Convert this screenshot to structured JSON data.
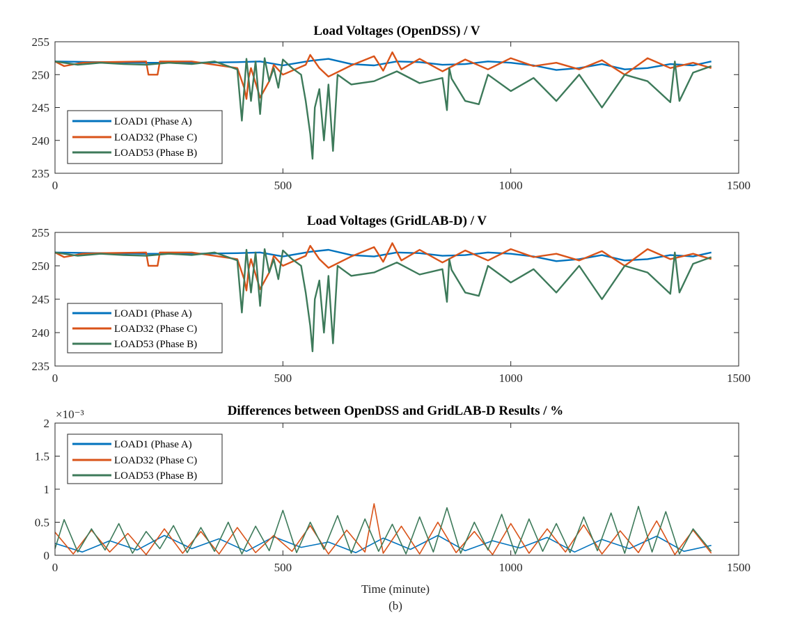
{
  "colors": {
    "load1": "#0072BD",
    "load32": "#D95319",
    "load53": "#3D7A5A"
  },
  "chart_data": [
    {
      "type": "line",
      "title": "Load Voltages (OpenDSS) / V",
      "xlabel": "",
      "ylabel": "",
      "xlim": [
        0,
        1500
      ],
      "ylim": [
        235,
        255
      ],
      "xticks": [
        0,
        500,
        1000,
        1500
      ],
      "yticks": [
        235,
        240,
        245,
        250,
        255
      ],
      "grid": false,
      "legend_position": "lower-left",
      "series": [
        {
          "name": "LOAD1 (Phase A)",
          "color_key": "load1",
          "x": [
            0,
            100,
            200,
            300,
            400,
            450,
            500,
            560,
            600,
            650,
            700,
            750,
            800,
            850,
            900,
            950,
            1000,
            1050,
            1100,
            1150,
            1200,
            1250,
            1300,
            1350,
            1400,
            1440
          ],
          "y": [
            252,
            251.9,
            251.8,
            251.8,
            251.9,
            252,
            251.4,
            252.1,
            252.4,
            251.6,
            251.4,
            252,
            251.9,
            251.5,
            251.6,
            252,
            251.8,
            251.4,
            250.7,
            251,
            251.6,
            250.8,
            251,
            251.6,
            251.4,
            252
          ]
        },
        {
          "name": "LOAD32 (Phase C)",
          "color_key": "load32",
          "x": [
            0,
            20,
            60,
            100,
            200,
            205,
            225,
            230,
            300,
            400,
            415,
            420,
            425,
            430,
            450,
            470,
            480,
            500,
            550,
            560,
            580,
            600,
            650,
            700,
            720,
            740,
            760,
            800,
            850,
            900,
            950,
            1000,
            1050,
            1100,
            1150,
            1200,
            1250,
            1300,
            1350,
            1400,
            1440
          ],
          "y": [
            252,
            251.3,
            251.8,
            251.9,
            252,
            250,
            250,
            252,
            252,
            251,
            248,
            246.3,
            249.5,
            251,
            246.5,
            249,
            251.5,
            250,
            251.5,
            253,
            251,
            249.7,
            251.4,
            252.8,
            250.6,
            253.4,
            250.8,
            252.4,
            250.5,
            252.3,
            250.8,
            252.5,
            251.3,
            251.8,
            250.8,
            252.2,
            250,
            252.5,
            251,
            251.8,
            251
          ]
        },
        {
          "name": "LOAD53 (Phase B)",
          "color_key": "load53",
          "x": [
            0,
            50,
            100,
            150,
            200,
            250,
            300,
            350,
            400,
            410,
            420,
            430,
            440,
            450,
            460,
            470,
            480,
            490,
            500,
            520,
            540,
            550,
            560,
            565,
            570,
            580,
            590,
            600,
            610,
            620,
            630,
            650,
            700,
            750,
            800,
            850,
            860,
            865,
            870,
            900,
            930,
            950,
            1000,
            1050,
            1100,
            1150,
            1200,
            1250,
            1300,
            1350,
            1360,
            1370,
            1400,
            1440
          ],
          "y": [
            252,
            251.5,
            251.8,
            251.6,
            251.5,
            251.8,
            251.6,
            252,
            250.8,
            243,
            252.4,
            246,
            252,
            244,
            252.5,
            249,
            251,
            248,
            252.3,
            251,
            250,
            246,
            241,
            237.2,
            245,
            247.8,
            240,
            248.5,
            238.4,
            250,
            249.5,
            248.5,
            249,
            250.5,
            248.7,
            249.5,
            244.6,
            251,
            249.4,
            246,
            245.5,
            250,
            247.5,
            249.5,
            246,
            250,
            245,
            250,
            249,
            245.8,
            252,
            246,
            250.3,
            251.3
          ]
        }
      ]
    },
    {
      "type": "line",
      "title": "Load Voltages (GridLAB-D) / V",
      "xlabel": "",
      "ylabel": "",
      "xlim": [
        0,
        1500
      ],
      "ylim": [
        235,
        255
      ],
      "xticks": [
        0,
        500,
        1000,
        1500
      ],
      "yticks": [
        235,
        240,
        245,
        250,
        255
      ],
      "grid": false,
      "legend_position": "lower-left",
      "series": [
        {
          "name": "LOAD1 (Phase A)",
          "color_key": "load1",
          "x": [
            0,
            100,
            200,
            300,
            400,
            450,
            500,
            560,
            600,
            650,
            700,
            750,
            800,
            850,
            900,
            950,
            1000,
            1050,
            1100,
            1150,
            1200,
            1250,
            1300,
            1350,
            1400,
            1440
          ],
          "y": [
            252,
            251.9,
            251.8,
            251.8,
            251.9,
            252,
            251.4,
            252.1,
            252.4,
            251.6,
            251.4,
            252,
            251.9,
            251.5,
            251.6,
            252,
            251.8,
            251.4,
            250.7,
            251,
            251.6,
            250.8,
            251,
            251.6,
            251.4,
            252
          ]
        },
        {
          "name": "LOAD32 (Phase C)",
          "color_key": "load32",
          "x": [
            0,
            20,
            60,
            100,
            200,
            205,
            225,
            230,
            300,
            400,
            415,
            420,
            425,
            430,
            450,
            470,
            480,
            500,
            550,
            560,
            580,
            600,
            650,
            700,
            720,
            740,
            760,
            800,
            850,
            900,
            950,
            1000,
            1050,
            1100,
            1150,
            1200,
            1250,
            1300,
            1350,
            1400,
            1440
          ],
          "y": [
            252,
            251.3,
            251.8,
            251.9,
            252,
            250,
            250,
            252,
            252,
            251,
            248,
            246.3,
            249.5,
            251,
            246.5,
            249,
            251.5,
            250,
            251.5,
            253,
            251,
            249.7,
            251.4,
            252.8,
            250.6,
            253.4,
            250.8,
            252.4,
            250.5,
            252.3,
            250.8,
            252.5,
            251.3,
            251.8,
            250.8,
            252.2,
            250,
            252.5,
            251,
            251.8,
            251
          ]
        },
        {
          "name": "LOAD53 (Phase B)",
          "color_key": "load53",
          "x": [
            0,
            50,
            100,
            150,
            200,
            250,
            300,
            350,
            400,
            410,
            420,
            430,
            440,
            450,
            460,
            470,
            480,
            490,
            500,
            520,
            540,
            550,
            560,
            565,
            570,
            580,
            590,
            600,
            610,
            620,
            630,
            650,
            700,
            750,
            800,
            850,
            860,
            865,
            870,
            900,
            930,
            950,
            1000,
            1050,
            1100,
            1150,
            1200,
            1250,
            1300,
            1350,
            1360,
            1370,
            1400,
            1440
          ],
          "y": [
            252,
            251.5,
            251.8,
            251.6,
            251.5,
            251.8,
            251.6,
            252,
            250.8,
            243,
            252.4,
            246,
            252,
            244,
            252.5,
            249,
            251,
            248,
            252.3,
            251,
            250,
            246,
            241,
            237.2,
            245,
            247.8,
            240,
            248.5,
            238.4,
            250,
            249.5,
            248.5,
            249,
            250.5,
            248.7,
            249.5,
            244.6,
            251,
            249.4,
            246,
            245.5,
            250,
            247.5,
            249.5,
            246,
            250,
            245,
            250,
            249,
            245.8,
            252,
            246,
            250.3,
            251.3
          ]
        }
      ]
    },
    {
      "type": "line",
      "title": "Differences between OpenDSS and GridLAB-D Results / %",
      "xlabel": "Time (minute)",
      "ylabel": "",
      "y_exponent_label": "×10⁻³",
      "xlim": [
        0,
        1500
      ],
      "ylim": [
        0,
        2
      ],
      "xticks": [
        0,
        500,
        1000,
        1500
      ],
      "yticks": [
        0,
        0.5,
        1,
        1.5,
        2
      ],
      "ytick_labels": [
        "0",
        "0.5",
        "1",
        "1.5",
        "2"
      ],
      "grid": false,
      "legend_position": "top-left",
      "series": [
        {
          "name": "LOAD1 (Phase A)",
          "color_key": "load1",
          "x": [
            0,
            60,
            120,
            180,
            240,
            300,
            360,
            420,
            480,
            540,
            600,
            660,
            720,
            780,
            840,
            900,
            960,
            1020,
            1080,
            1140,
            1200,
            1260,
            1320,
            1380,
            1440
          ],
          "y": [
            0.18,
            0.05,
            0.22,
            0.08,
            0.3,
            0.1,
            0.25,
            0.06,
            0.28,
            0.12,
            0.2,
            0.04,
            0.26,
            0.09,
            0.3,
            0.07,
            0.22,
            0.11,
            0.27,
            0.05,
            0.24,
            0.1,
            0.29,
            0.06,
            0.15
          ]
        },
        {
          "name": "LOAD32 (Phase C)",
          "color_key": "load32",
          "x": [
            0,
            40,
            80,
            120,
            160,
            200,
            240,
            280,
            320,
            360,
            400,
            440,
            480,
            520,
            560,
            600,
            640,
            680,
            700,
            720,
            760,
            800,
            840,
            880,
            920,
            960,
            1000,
            1040,
            1080,
            1120,
            1160,
            1200,
            1240,
            1280,
            1320,
            1360,
            1400,
            1440
          ],
          "y": [
            0.35,
            0.02,
            0.38,
            0.05,
            0.33,
            0.01,
            0.4,
            0.03,
            0.36,
            0.02,
            0.42,
            0.04,
            0.3,
            0.06,
            0.45,
            0.02,
            0.38,
            0.05,
            0.78,
            0.03,
            0.44,
            0.02,
            0.5,
            0.04,
            0.36,
            0.01,
            0.48,
            0.03,
            0.4,
            0.05,
            0.46,
            0.02,
            0.37,
            0.04,
            0.52,
            0.01,
            0.38,
            0.03
          ]
        },
        {
          "name": "LOAD53 (Phase B)",
          "color_key": "load53",
          "x": [
            0,
            20,
            50,
            80,
            110,
            140,
            170,
            200,
            230,
            260,
            290,
            320,
            350,
            380,
            410,
            440,
            470,
            500,
            530,
            560,
            590,
            620,
            650,
            680,
            710,
            740,
            770,
            800,
            830,
            860,
            890,
            920,
            950,
            980,
            1010,
            1040,
            1070,
            1100,
            1130,
            1160,
            1190,
            1220,
            1250,
            1280,
            1310,
            1340,
            1370,
            1400,
            1440
          ],
          "y": [
            0.1,
            0.54,
            0.05,
            0.4,
            0.08,
            0.48,
            0.03,
            0.36,
            0.1,
            0.45,
            0.04,
            0.42,
            0.06,
            0.5,
            0.02,
            0.44,
            0.07,
            0.68,
            0.04,
            0.5,
            0.09,
            0.6,
            0.03,
            0.55,
            0.06,
            0.47,
            0.02,
            0.58,
            0.05,
            0.72,
            0.03,
            0.5,
            0.08,
            0.62,
            0.02,
            0.55,
            0.06,
            0.48,
            0.04,
            0.58,
            0.07,
            0.64,
            0.03,
            0.74,
            0.05,
            0.66,
            0.02,
            0.4,
            0.06
          ]
        }
      ]
    }
  ],
  "caption": "(b)"
}
